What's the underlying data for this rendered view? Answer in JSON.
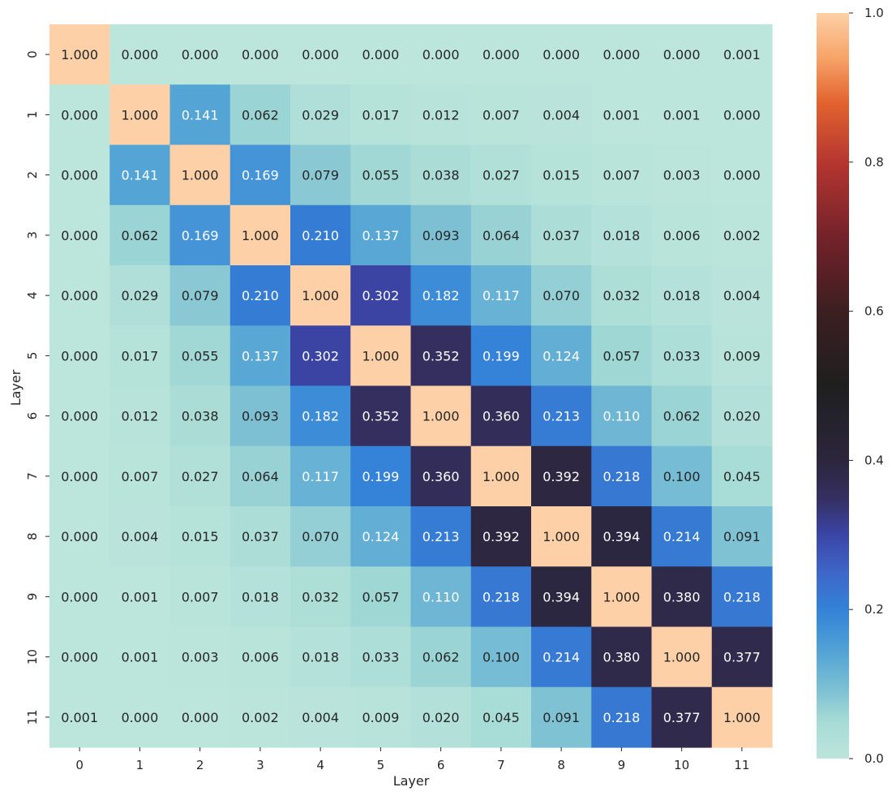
{
  "chart_data": {
    "type": "heatmap",
    "title": "",
    "xlabel": "Layer",
    "ylabel": "Layer",
    "x_categories": [
      "0",
      "1",
      "2",
      "3",
      "4",
      "5",
      "6",
      "7",
      "8",
      "9",
      "10",
      "11"
    ],
    "y_categories": [
      "0",
      "1",
      "2",
      "3",
      "4",
      "5",
      "6",
      "7",
      "8",
      "9",
      "10",
      "11"
    ],
    "values": [
      [
        1.0,
        0.0,
        0.0,
        0.0,
        0.0,
        0.0,
        0.0,
        0.0,
        0.0,
        0.0,
        0.0,
        0.001
      ],
      [
        0.0,
        1.0,
        0.141,
        0.062,
        0.029,
        0.017,
        0.012,
        0.007,
        0.004,
        0.001,
        0.001,
        0.0
      ],
      [
        0.0,
        0.141,
        1.0,
        0.169,
        0.079,
        0.055,
        0.038,
        0.027,
        0.015,
        0.007,
        0.003,
        0.0
      ],
      [
        0.0,
        0.062,
        0.169,
        1.0,
        0.21,
        0.137,
        0.093,
        0.064,
        0.037,
        0.018,
        0.006,
        0.002
      ],
      [
        0.0,
        0.029,
        0.079,
        0.21,
        1.0,
        0.302,
        0.182,
        0.117,
        0.07,
        0.032,
        0.018,
        0.004
      ],
      [
        0.0,
        0.017,
        0.055,
        0.137,
        0.302,
        1.0,
        0.352,
        0.199,
        0.124,
        0.057,
        0.033,
        0.009
      ],
      [
        0.0,
        0.012,
        0.038,
        0.093,
        0.182,
        0.352,
        1.0,
        0.36,
        0.213,
        0.11,
        0.062,
        0.02
      ],
      [
        0.0,
        0.007,
        0.027,
        0.064,
        0.117,
        0.199,
        0.36,
        1.0,
        0.392,
        0.218,
        0.1,
        0.045
      ],
      [
        0.0,
        0.004,
        0.015,
        0.037,
        0.07,
        0.124,
        0.213,
        0.392,
        1.0,
        0.394,
        0.214,
        0.091
      ],
      [
        0.0,
        0.001,
        0.007,
        0.018,
        0.032,
        0.057,
        0.11,
        0.218,
        0.394,
        1.0,
        0.38,
        0.218
      ],
      [
        0.0,
        0.001,
        0.003,
        0.006,
        0.018,
        0.033,
        0.062,
        0.1,
        0.214,
        0.38,
        1.0,
        0.377
      ],
      [
        0.001,
        0.0,
        0.0,
        0.002,
        0.004,
        0.009,
        0.02,
        0.045,
        0.091,
        0.218,
        0.377,
        1.0
      ]
    ],
    "annotation_format": "3 decimals",
    "color_range": [
      0.0,
      1.0
    ],
    "colormap": "icefire",
    "colorbar_ticks": [
      0.0,
      0.2,
      0.4,
      0.6,
      0.8,
      1.0
    ],
    "colorbar_tick_labels": [
      "0.0",
      "0.2",
      "0.4",
      "0.6",
      "0.8",
      "1.0"
    ],
    "colormap_stops": [
      {
        "value": 0.0,
        "color": "#bce5db"
      },
      {
        "value": 0.05,
        "color": "#a6dbd5"
      },
      {
        "value": 0.1,
        "color": "#76bcd4"
      },
      {
        "value": 0.15,
        "color": "#4e9fd6"
      },
      {
        "value": 0.2,
        "color": "#3382d8"
      },
      {
        "value": 0.25,
        "color": "#3f66c8"
      },
      {
        "value": 0.3,
        "color": "#3b45a6"
      },
      {
        "value": 0.35,
        "color": "#352f60"
      },
      {
        "value": 0.4,
        "color": "#2b263c"
      },
      {
        "value": 0.5,
        "color": "#1f1f1f"
      },
      {
        "value": 0.6,
        "color": "#3c1f21"
      },
      {
        "value": 0.7,
        "color": "#74222a"
      },
      {
        "value": 0.8,
        "color": "#b53630"
      },
      {
        "value": 0.88,
        "color": "#e2632f"
      },
      {
        "value": 0.94,
        "color": "#f7a469"
      },
      {
        "value": 1.0,
        "color": "#fdd0a7"
      }
    ]
  }
}
